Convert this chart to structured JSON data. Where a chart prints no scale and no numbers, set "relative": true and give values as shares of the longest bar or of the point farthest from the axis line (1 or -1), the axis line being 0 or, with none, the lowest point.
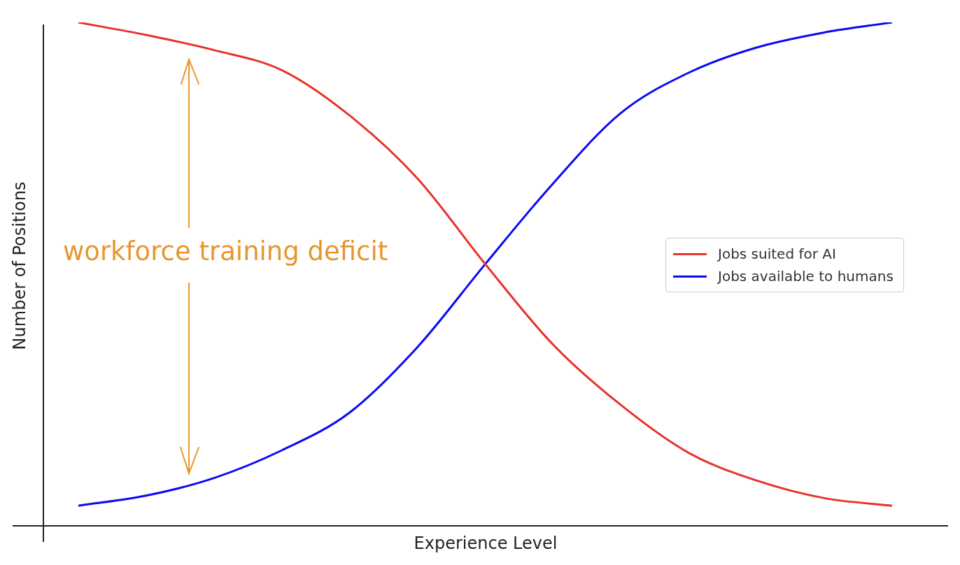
{
  "chart_data": {
    "type": "line",
    "relative": true,
    "xlabel": "Experience Level",
    "ylabel": "Number of Positions",
    "categories": [
      null,
      null,
      null,
      null,
      null,
      null,
      null,
      null,
      null,
      null,
      null,
      null,
      null
    ],
    "series": [
      {
        "name": "Jobs suited for AI",
        "color": "#e8322a",
        "values": [
          1.0,
          0.975,
          0.945,
          0.905,
          0.815,
          0.69,
          0.52,
          0.36,
          0.24,
          0.145,
          0.09,
          0.055,
          0.04
        ]
      },
      {
        "name": "Jobs available to humans",
        "color": "#0a0af5",
        "values": [
          0.04,
          0.06,
          0.095,
          0.15,
          0.225,
          0.355,
          0.52,
          0.68,
          0.82,
          0.9,
          0.95,
          0.98,
          1.0
        ]
      }
    ],
    "annotations": [
      "workforce training deficit"
    ],
    "legend": "right",
    "tick_labels": false,
    "marker": "none",
    "line_style": "solid"
  }
}
